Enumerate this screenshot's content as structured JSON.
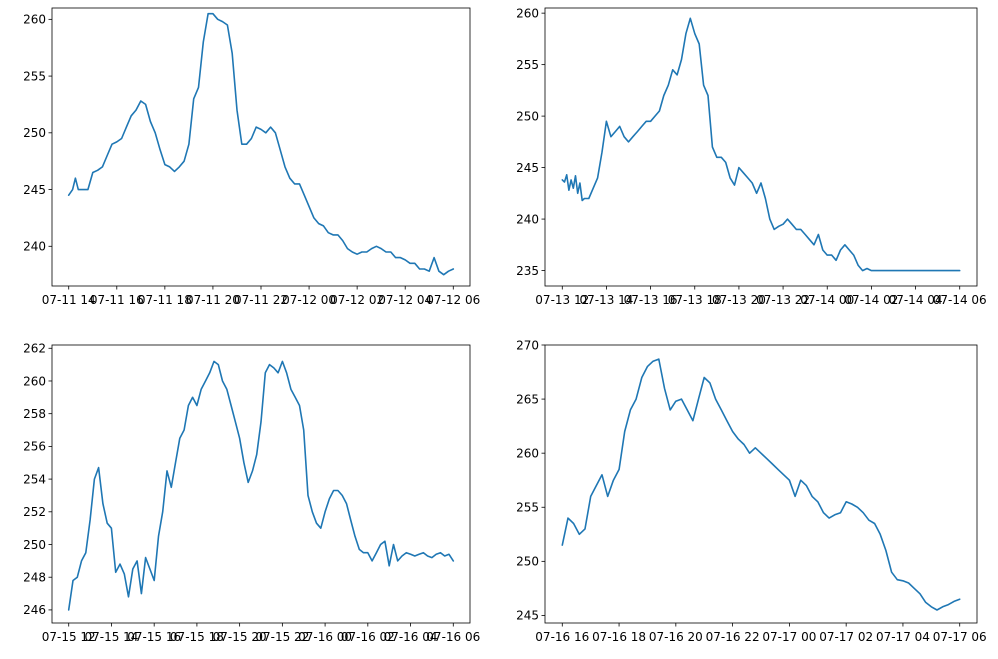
{
  "figure": {
    "line_color": "#1f77b4"
  },
  "chart_data": [
    {
      "type": "line",
      "grid": false,
      "x_ticks": [
        "07-11 14",
        "07-11 16",
        "07-11 18",
        "07-11 20",
        "07-11 22",
        "07-12 00",
        "07-12 02",
        "07-12 04",
        "07-12 06"
      ],
      "xlim": [
        0,
        8
      ],
      "ylim": [
        236.5,
        261.0
      ],
      "y_ticks": [
        240,
        245,
        250,
        255,
        260
      ],
      "series": [
        {
          "x": [
            0,
            0.08,
            0.14,
            0.2,
            0.3,
            0.4,
            0.5,
            0.6,
            0.7,
            0.8,
            0.9,
            1.0,
            1.1,
            1.2,
            1.3,
            1.4,
            1.5,
            1.6,
            1.7,
            1.8,
            1.9,
            2.0,
            2.1,
            2.2,
            2.3,
            2.4,
            2.5,
            2.6,
            2.7,
            2.8,
            2.9,
            3.0,
            3.1,
            3.2,
            3.3,
            3.4,
            3.5,
            3.6,
            3.7,
            3.8,
            3.9,
            4.0,
            4.1,
            4.2,
            4.3,
            4.4,
            4.5,
            4.6,
            4.7,
            4.8,
            4.9,
            5.0,
            5.1,
            5.2,
            5.3,
            5.4,
            5.5,
            5.6,
            5.7,
            5.8,
            5.9,
            6.0,
            6.1,
            6.2,
            6.3,
            6.4,
            6.5,
            6.6,
            6.7,
            6.8,
            6.9,
            7.0,
            7.1,
            7.2,
            7.3,
            7.4,
            7.5,
            7.6,
            7.7,
            7.8,
            7.9,
            8.0
          ],
          "y": [
            244.5,
            245.0,
            246.0,
            245.0,
            245.0,
            245.0,
            246.5,
            246.7,
            247.0,
            248.0,
            249.0,
            249.2,
            249.5,
            250.5,
            251.5,
            252.0,
            252.8,
            252.5,
            251.0,
            250.0,
            248.5,
            247.2,
            247.0,
            246.6,
            247.0,
            247.5,
            249.0,
            253.0,
            254.0,
            258.0,
            260.5,
            260.5,
            260.0,
            259.8,
            259.5,
            257.0,
            252.0,
            249.0,
            249.0,
            249.5,
            250.5,
            250.3,
            250.0,
            250.5,
            250.0,
            248.5,
            247.0,
            246.0,
            245.5,
            245.5,
            244.5,
            243.5,
            242.5,
            242.0,
            241.8,
            241.2,
            241.0,
            241.0,
            240.5,
            239.8,
            239.5,
            239.3,
            239.5,
            239.5,
            239.8,
            240.0,
            239.8,
            239.5,
            239.5,
            239.0,
            239.0,
            238.8,
            238.5,
            238.5,
            238.0,
            238.0,
            237.8,
            239.0,
            237.8,
            237.5,
            237.8,
            238.0
          ]
        }
      ]
    },
    {
      "type": "line",
      "grid": false,
      "x_ticks": [
        "07-13 12",
        "07-13 14",
        "07-13 16",
        "07-13 18",
        "07-13 20",
        "07-13 22",
        "07-14 00",
        "07-14 02",
        "07-14 04",
        "07-14 06"
      ],
      "xlim": [
        0,
        9
      ],
      "ylim": [
        233.5,
        260.5
      ],
      "y_ticks": [
        235,
        240,
        245,
        250,
        255,
        260
      ],
      "series": [
        {
          "x": [
            0,
            0.05,
            0.1,
            0.15,
            0.2,
            0.25,
            0.3,
            0.35,
            0.4,
            0.45,
            0.5,
            0.6,
            0.7,
            0.8,
            0.9,
            1.0,
            1.1,
            1.2,
            1.3,
            1.4,
            1.5,
            1.6,
            1.7,
            1.8,
            1.9,
            2.0,
            2.1,
            2.2,
            2.3,
            2.4,
            2.5,
            2.6,
            2.7,
            2.8,
            2.9,
            3.0,
            3.1,
            3.2,
            3.3,
            3.4,
            3.5,
            3.6,
            3.7,
            3.8,
            3.9,
            4.0,
            4.1,
            4.2,
            4.3,
            4.4,
            4.5,
            4.6,
            4.7,
            4.8,
            4.9,
            5.0,
            5.1,
            5.2,
            5.3,
            5.4,
            5.5,
            5.6,
            5.7,
            5.8,
            5.9,
            6.0,
            6.1,
            6.2,
            6.3,
            6.4,
            6.5,
            6.6,
            6.7,
            6.8,
            6.9,
            7.0,
            7.1,
            7.2,
            7.3,
            7.4,
            7.5,
            7.6,
            7.7,
            7.8,
            7.9,
            8.0,
            8.1,
            8.2,
            8.3,
            8.4,
            8.5,
            8.6,
            8.7,
            8.8,
            8.9,
            9.0
          ],
          "y": [
            243.8,
            243.6,
            244.3,
            242.8,
            243.8,
            243.0,
            244.2,
            242.5,
            243.5,
            241.8,
            242.0,
            242.0,
            243.0,
            244.0,
            246.5,
            249.5,
            248.0,
            248.5,
            249.0,
            248.0,
            247.5,
            248.0,
            248.5,
            249.0,
            249.5,
            249.5,
            250.0,
            250.5,
            252.0,
            253.0,
            254.5,
            254.0,
            255.5,
            258.0,
            259.5,
            258.0,
            257.0,
            253.0,
            252.0,
            247.0,
            246.0,
            246.0,
            245.5,
            244.0,
            243.3,
            245.0,
            244.5,
            244.0,
            243.5,
            242.5,
            243.5,
            242.0,
            240.0,
            239.0,
            239.3,
            239.5,
            240.0,
            239.5,
            239.0,
            239.0,
            238.5,
            238.0,
            237.5,
            238.5,
            237.0,
            236.5,
            236.5,
            236.0,
            237.0,
            237.5,
            237.0,
            236.5,
            235.5,
            235.0,
            235.2,
            235.0,
            235.0,
            235.0,
            235.0,
            235.0,
            235.0,
            235.0,
            235.0,
            235.0,
            235.0,
            235.0,
            235.0,
            235.0,
            235.0,
            235.0,
            235.0,
            235.0,
            235.0,
            235.0,
            235.0,
            235.0
          ]
        }
      ]
    },
    {
      "type": "line",
      "grid": false,
      "x_ticks": [
        "07-15 12",
        "07-15 14",
        "07-15 16",
        "07-15 18",
        "07-15 20",
        "07-15 22",
        "07-16 00",
        "07-16 02",
        "07-16 04",
        "07-16 06"
      ],
      "xlim": [
        0,
        9
      ],
      "ylim": [
        245.2,
        262.2
      ],
      "y_ticks": [
        246,
        248,
        250,
        252,
        254,
        256,
        258,
        260,
        262
      ],
      "series": [
        {
          "x": [
            0,
            0.1,
            0.2,
            0.3,
            0.4,
            0.5,
            0.6,
            0.7,
            0.8,
            0.9,
            1.0,
            1.1,
            1.2,
            1.3,
            1.4,
            1.5,
            1.6,
            1.7,
            1.8,
            1.9,
            2.0,
            2.1,
            2.2,
            2.3,
            2.4,
            2.5,
            2.6,
            2.7,
            2.8,
            2.9,
            3.0,
            3.1,
            3.2,
            3.3,
            3.4,
            3.5,
            3.6,
            3.7,
            3.8,
            3.9,
            4.0,
            4.1,
            4.2,
            4.3,
            4.4,
            4.5,
            4.6,
            4.7,
            4.8,
            4.9,
            5.0,
            5.1,
            5.2,
            5.3,
            5.4,
            5.5,
            5.6,
            5.7,
            5.8,
            5.9,
            6.0,
            6.1,
            6.2,
            6.3,
            6.4,
            6.5,
            6.6,
            6.7,
            6.8,
            6.9,
            7.0,
            7.1,
            7.2,
            7.3,
            7.4,
            7.5,
            7.6,
            7.7,
            7.8,
            7.9,
            8.0,
            8.1,
            8.2,
            8.3,
            8.4,
            8.5,
            8.6,
            8.7,
            8.8,
            8.9,
            9.0
          ],
          "y": [
            246.0,
            247.8,
            248.0,
            249.0,
            249.5,
            251.5,
            254.0,
            254.7,
            252.5,
            251.3,
            251.0,
            248.3,
            248.8,
            248.2,
            246.8,
            248.5,
            249.0,
            247.0,
            249.2,
            248.5,
            247.8,
            250.5,
            252.0,
            254.5,
            253.5,
            255.0,
            256.5,
            257.0,
            258.5,
            259.0,
            258.5,
            259.5,
            260.0,
            260.5,
            261.2,
            261.0,
            260.0,
            259.5,
            258.5,
            257.5,
            256.5,
            255.0,
            253.8,
            254.5,
            255.5,
            257.5,
            260.5,
            261.0,
            260.8,
            260.5,
            261.2,
            260.5,
            259.5,
            259.0,
            258.5,
            257.0,
            253.0,
            252.0,
            251.3,
            251.0,
            252.0,
            252.8,
            253.3,
            253.3,
            253.0,
            252.5,
            251.5,
            250.5,
            249.7,
            249.5,
            249.5,
            249.0,
            249.5,
            250.0,
            250.2,
            248.7,
            250.0,
            249.0,
            249.3,
            249.5,
            249.4,
            249.3,
            249.4,
            249.5,
            249.3,
            249.2,
            249.4,
            249.5,
            249.3,
            249.4,
            249.0
          ]
        }
      ]
    },
    {
      "type": "line",
      "grid": false,
      "x_ticks": [
        "07-16 16",
        "07-16 18",
        "07-16 20",
        "07-16 22",
        "07-17 00",
        "07-17 02",
        "07-17 04",
        "07-17 06"
      ],
      "xlim": [
        0,
        7
      ],
      "ylim": [
        244.3,
        270.0
      ],
      "y_ticks": [
        245,
        250,
        255,
        260,
        265,
        270
      ],
      "series": [
        {
          "x": [
            0,
            0.1,
            0.2,
            0.3,
            0.4,
            0.5,
            0.6,
            0.7,
            0.8,
            0.9,
            1.0,
            1.1,
            1.2,
            1.3,
            1.4,
            1.5,
            1.6,
            1.7,
            1.8,
            1.9,
            2.0,
            2.1,
            2.2,
            2.3,
            2.4,
            2.5,
            2.6,
            2.7,
            2.8,
            2.9,
            3.0,
            3.1,
            3.2,
            3.3,
            3.4,
            3.5,
            3.6,
            3.7,
            3.8,
            3.9,
            4.0,
            4.1,
            4.2,
            4.3,
            4.4,
            4.5,
            4.6,
            4.7,
            4.8,
            4.9,
            5.0,
            5.1,
            5.2,
            5.3,
            5.4,
            5.5,
            5.6,
            5.7,
            5.8,
            5.9,
            6.0,
            6.1,
            6.2,
            6.3,
            6.4,
            6.5,
            6.6,
            6.7,
            6.8,
            6.9,
            7.0
          ],
          "y": [
            251.5,
            254.0,
            253.5,
            252.5,
            253.0,
            256.0,
            257.0,
            258.0,
            256.0,
            257.5,
            258.5,
            262.0,
            264.0,
            265.0,
            267.0,
            268.0,
            268.5,
            268.7,
            266.0,
            264.0,
            264.8,
            265.0,
            264.0,
            263.0,
            265.0,
            267.0,
            266.5,
            265.0,
            264.0,
            263.0,
            262.0,
            261.3,
            260.8,
            260.0,
            260.5,
            260.0,
            259.5,
            259.0,
            258.5,
            258.0,
            257.5,
            256.0,
            257.5,
            257.0,
            256.0,
            255.5,
            254.5,
            254.0,
            254.3,
            254.5,
            255.5,
            255.3,
            255.0,
            254.5,
            253.8,
            253.5,
            252.5,
            251.0,
            249.0,
            248.3,
            248.2,
            248.0,
            247.5,
            247.0,
            246.2,
            245.8,
            245.5,
            245.8,
            246.0,
            246.3,
            246.5
          ]
        }
      ]
    }
  ]
}
